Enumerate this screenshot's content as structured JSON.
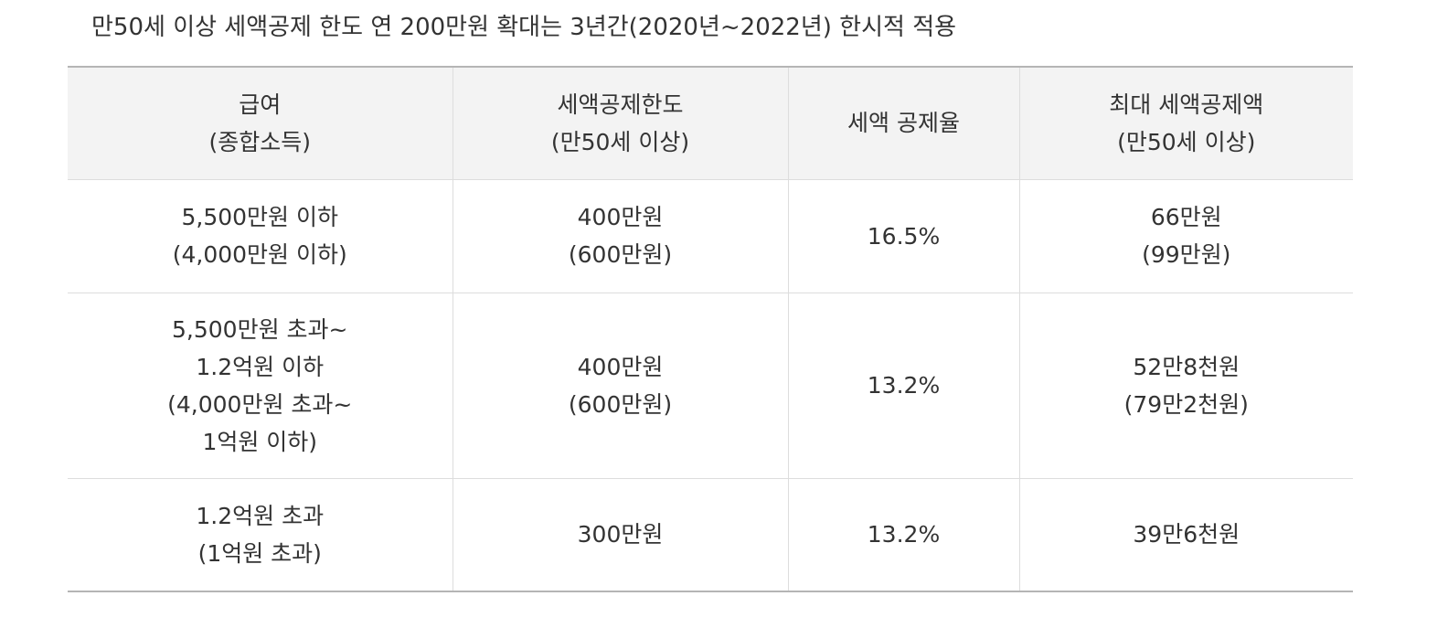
{
  "title": "만50세 이상 세액공제 한도 연 200만원 확대는 3년간(2020년~2022년) 한시적 적용",
  "table": {
    "header": [
      [
        "급여",
        "(종합소득)"
      ],
      [
        "세액공제한도",
        "(만50세 이상)"
      ],
      [
        "세액 공제율"
      ],
      [
        "최대 세액공제액",
        "(만50세 이상)"
      ]
    ],
    "rows": [
      [
        [
          "5,500만원 이하",
          "(4,000만원 이하)"
        ],
        [
          "400만원",
          "(600만원)"
        ],
        [
          "16.5%"
        ],
        [
          "66만원",
          "(99만원)"
        ]
      ],
      [
        [
          "5,500만원 초과~",
          "1.2억원 이하",
          "(4,000만원 초과~",
          "1억원 이하)"
        ],
        [
          "400만원",
          "(600만원)"
        ],
        [
          "13.2%"
        ],
        [
          "52만8천원",
          "(79만2천원)"
        ]
      ],
      [
        [
          "1.2억원 초과",
          "(1억원 초과)"
        ],
        [
          "300만원"
        ],
        [
          "13.2%"
        ],
        [
          "39만6천원"
        ]
      ]
    ]
  }
}
